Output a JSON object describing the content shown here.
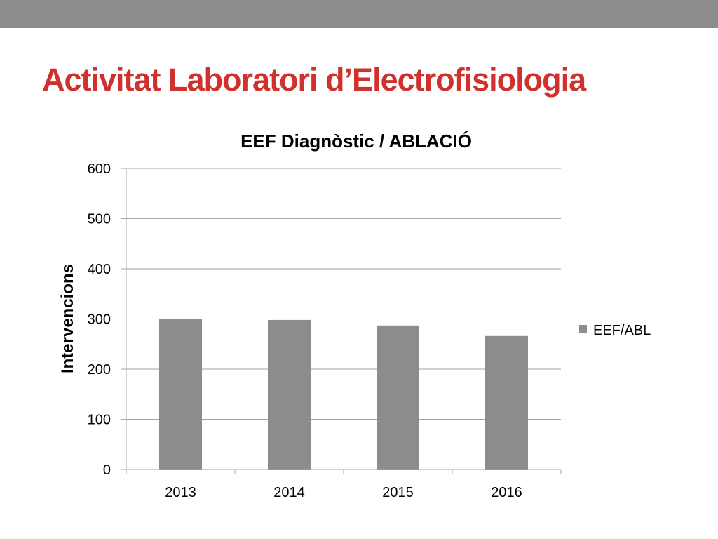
{
  "slide": {
    "title": "Activitat Laboratori d’Electrofisiologia"
  },
  "colors": {
    "title": "#d0312d",
    "top_bar": "#8c8c8c",
    "bar": "#8c8c8c",
    "grid": "#a6a6a6"
  },
  "chart_data": {
    "type": "bar",
    "title": "EEF Diagnòstic / ABLACIÓ",
    "xlabel": "",
    "ylabel": "Intervencions",
    "categories": [
      "2013",
      "2014",
      "2015",
      "2016"
    ],
    "series": [
      {
        "name": "EEF/ABL",
        "values": [
          300,
          298,
          287,
          266
        ]
      }
    ],
    "ylim": [
      0,
      600
    ],
    "yticks": [
      0,
      100,
      200,
      300,
      400,
      500,
      600
    ],
    "grid": true,
    "legend": "right"
  }
}
